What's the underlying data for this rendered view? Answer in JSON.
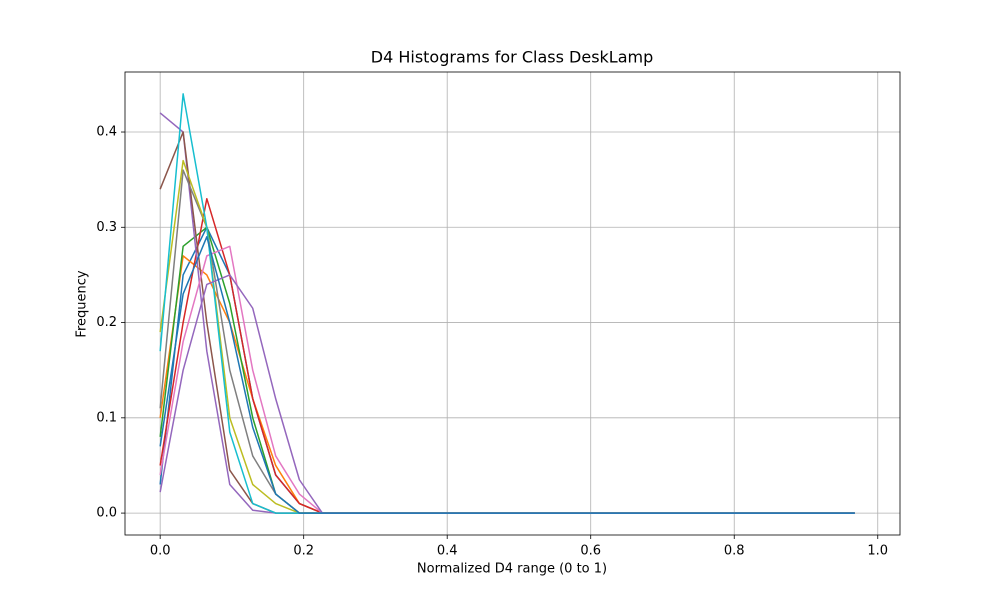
{
  "chart_data": {
    "type": "line",
    "title": "D4 Histograms for Class DeskLamp",
    "xlabel": "Normalized D4 range (0 to 1)",
    "ylabel": "Frequency",
    "x": [
      0,
      0.032,
      0.065,
      0.097,
      0.129,
      0.161,
      0.194,
      0.226,
      0.258,
      0.29,
      0.323,
      0.355,
      0.387,
      0.419,
      0.452,
      0.484,
      0.516,
      0.548,
      0.581,
      0.613,
      0.645,
      0.677,
      0.71,
      0.742,
      0.774,
      0.806,
      0.839,
      0.871,
      0.903,
      0.935,
      0.968
    ],
    "series": [
      {
        "color": "#1f77b4",
        "values": [
          0.03,
          0.25,
          0.3,
          0.25,
          0.12,
          0.04,
          0.01,
          0,
          0,
          0,
          0,
          0,
          0,
          0,
          0,
          0,
          0,
          0,
          0,
          0,
          0,
          0,
          0,
          0,
          0,
          0,
          0,
          0,
          0,
          0,
          0
        ]
      },
      {
        "color": "#ff7f0e",
        "values": [
          0.1,
          0.27,
          0.25,
          0.2,
          0.12,
          0.05,
          0.01,
          0,
          0,
          0,
          0,
          0,
          0,
          0,
          0,
          0,
          0,
          0,
          0,
          0,
          0,
          0,
          0,
          0,
          0,
          0,
          0,
          0,
          0,
          0,
          0
        ]
      },
      {
        "color": "#2ca02c",
        "values": [
          0.08,
          0.28,
          0.3,
          0.22,
          0.1,
          0.02,
          0,
          0,
          0,
          0,
          0,
          0,
          0,
          0,
          0,
          0,
          0,
          0,
          0,
          0,
          0,
          0,
          0,
          0,
          0,
          0,
          0,
          0,
          0,
          0,
          0
        ]
      },
      {
        "color": "#d62728",
        "values": [
          0.05,
          0.2,
          0.33,
          0.25,
          0.12,
          0.04,
          0.01,
          0,
          0,
          0,
          0,
          0,
          0,
          0,
          0,
          0,
          0,
          0,
          0,
          0,
          0,
          0,
          0,
          0,
          0,
          0,
          0,
          0,
          0,
          0,
          0
        ]
      },
      {
        "color": "#9467bd",
        "values": [
          0.42,
          0.4,
          0.17,
          0.03,
          0.003,
          0,
          0,
          0,
          0,
          0,
          0,
          0,
          0,
          0,
          0,
          0,
          0,
          0,
          0,
          0,
          0,
          0,
          0,
          0,
          0,
          0,
          0,
          0,
          0,
          0,
          0
        ]
      },
      {
        "color": "#8c564b",
        "values": [
          0.34,
          0.4,
          0.2,
          0.045,
          0.01,
          0,
          0,
          0,
          0,
          0,
          0,
          0,
          0,
          0,
          0,
          0,
          0,
          0,
          0,
          0,
          0,
          0,
          0,
          0,
          0,
          0,
          0,
          0,
          0,
          0,
          0
        ]
      },
      {
        "color": "#e377c2",
        "values": [
          0.04,
          0.18,
          0.27,
          0.28,
          0.15,
          0.06,
          0.02,
          0,
          0,
          0,
          0,
          0,
          0,
          0,
          0,
          0,
          0,
          0,
          0,
          0,
          0,
          0,
          0,
          0,
          0,
          0,
          0,
          0,
          0,
          0,
          0
        ]
      },
      {
        "color": "#7f7f7f",
        "values": [
          0.11,
          0.36,
          0.3,
          0.15,
          0.06,
          0.02,
          0,
          0,
          0,
          0,
          0,
          0,
          0,
          0,
          0,
          0,
          0,
          0,
          0,
          0,
          0,
          0,
          0,
          0,
          0,
          0,
          0,
          0,
          0,
          0,
          0
        ]
      },
      {
        "color": "#bcbd22",
        "values": [
          0.19,
          0.37,
          0.3,
          0.1,
          0.03,
          0.01,
          0,
          0,
          0,
          0,
          0,
          0,
          0,
          0,
          0,
          0,
          0,
          0,
          0,
          0,
          0,
          0,
          0,
          0,
          0,
          0,
          0,
          0,
          0,
          0,
          0
        ]
      },
      {
        "color": "#17becf",
        "values": [
          0.17,
          0.44,
          0.3,
          0.085,
          0.01,
          0,
          0,
          0,
          0,
          0,
          0,
          0,
          0,
          0,
          0,
          0,
          0,
          0,
          0,
          0,
          0,
          0,
          0,
          0,
          0,
          0,
          0,
          0,
          0,
          0,
          0
        ]
      },
      {
        "color": "#9467bd",
        "values": [
          0.022,
          0.15,
          0.24,
          0.25,
          0.215,
          0.12,
          0.035,
          0,
          0,
          0,
          0,
          0,
          0,
          0,
          0,
          0,
          0,
          0,
          0,
          0,
          0,
          0,
          0,
          0,
          0,
          0,
          0,
          0,
          0,
          0,
          0
        ]
      },
      {
        "color": "#1f77b4",
        "values": [
          0.07,
          0.23,
          0.29,
          0.2,
          0.09,
          0.02,
          0,
          0,
          0,
          0,
          0,
          0,
          0,
          0,
          0,
          0,
          0,
          0,
          0,
          0,
          0,
          0,
          0,
          0,
          0,
          0,
          0,
          0,
          0,
          0,
          0
        ]
      }
    ],
    "xlim": [
      -0.049,
      1.031
    ],
    "ylim": [
      -0.023,
      0.463
    ],
    "xticks": [
      {
        "value": 0,
        "label": "0.0"
      },
      0.2,
      0.4,
      0.6,
      0.8,
      {
        "value": 1,
        "label": "1.0"
      }
    ],
    "yticks": [
      {
        "value": 0,
        "label": "0.0"
      },
      0.1,
      0.2,
      0.3,
      0.4
    ],
    "grid": true
  }
}
